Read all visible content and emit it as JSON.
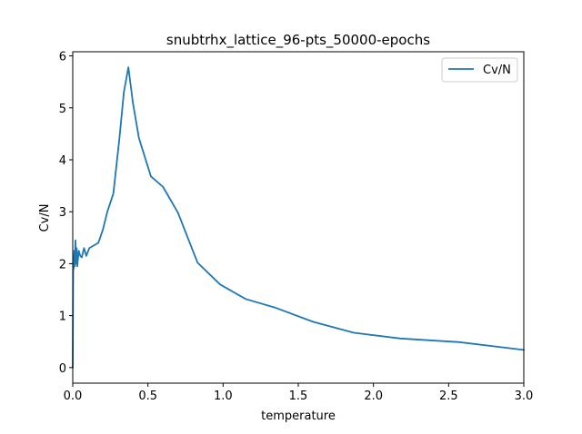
{
  "chart_data": {
    "type": "line",
    "title": "snubtrhx_lattice_96-pts_50000-epochs",
    "xlabel": "temperature",
    "ylabel": "Cv/N",
    "xlim": [
      0,
      3.0
    ],
    "ylim": [
      -0.3,
      6.08
    ],
    "xticks": [
      "0.0",
      "0.5",
      "1.0",
      "1.5",
      "2.0",
      "2.5",
      "3.0"
    ],
    "yticks": [
      "0",
      "1",
      "2",
      "3",
      "4",
      "5",
      "6"
    ],
    "xtick_values": [
      0,
      0.5,
      1.0,
      1.5,
      2.0,
      2.5,
      3.0
    ],
    "ytick_values": [
      0,
      1,
      2,
      3,
      4,
      5,
      6
    ],
    "grid": false,
    "legend_position": "top-right",
    "series": [
      {
        "name": "Cv/N",
        "color": "#1f77b4",
        "x": [
          0.0,
          0.003,
          0.006,
          0.01,
          0.014,
          0.018,
          0.022,
          0.026,
          0.03,
          0.04,
          0.05,
          0.06,
          0.075,
          0.09,
          0.11,
          0.14,
          0.17,
          0.2,
          0.23,
          0.27,
          0.31,
          0.34,
          0.37,
          0.4,
          0.44,
          0.52,
          0.6,
          0.7,
          0.83,
          0.98,
          1.15,
          1.35,
          1.6,
          1.87,
          2.18,
          2.57,
          3.0
        ],
        "y": [
          0.0,
          2.1,
          1.9,
          2.25,
          1.95,
          2.45,
          2.0,
          2.3,
          1.95,
          2.25,
          2.15,
          2.12,
          2.3,
          2.15,
          2.3,
          2.35,
          2.4,
          2.65,
          3.0,
          3.35,
          4.4,
          5.3,
          5.78,
          5.1,
          4.42,
          3.68,
          3.48,
          2.98,
          2.02,
          1.6,
          1.32,
          1.15,
          0.88,
          0.67,
          0.56,
          0.49,
          0.34
        ]
      }
    ]
  }
}
